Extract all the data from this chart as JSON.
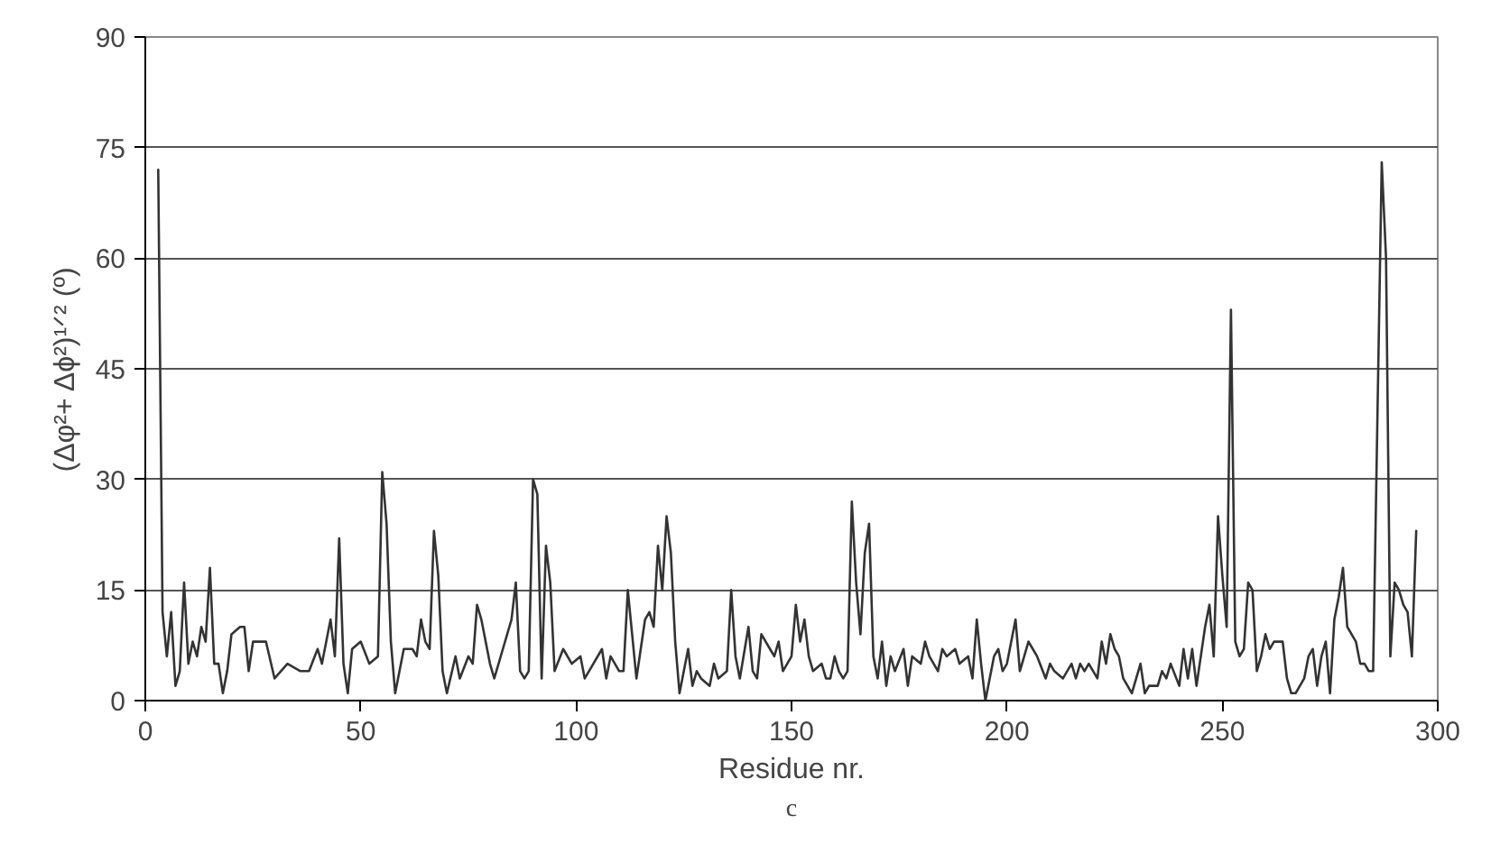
{
  "chart_data": {
    "type": "line",
    "xlabel": "Residue nr.",
    "ylabel": "(Δφ²+ Δϕ²)¹ᐟ² (º)",
    "annotations": [
      "c"
    ],
    "xlim": [
      0,
      300
    ],
    "xticks": [
      0,
      50,
      100,
      150,
      200,
      250,
      300
    ],
    "ylim": [
      0,
      90
    ],
    "yticks": [
      0,
      15,
      30,
      45,
      60,
      75,
      90
    ],
    "grid": "y",
    "series": [
      {
        "color": "#333333",
        "x": [
          3,
          4,
          5,
          6,
          7,
          8,
          9,
          10,
          11,
          12,
          13,
          14,
          15,
          16,
          17,
          18,
          19,
          20,
          22,
          23,
          24,
          25,
          27,
          28,
          30,
          33,
          36,
          38,
          40,
          41,
          43,
          44,
          45,
          46,
          47,
          48,
          50,
          52,
          54,
          55,
          56,
          57,
          58,
          60,
          62,
          63,
          64,
          65,
          66,
          67,
          68,
          69,
          70,
          72,
          73,
          75,
          76,
          77,
          78,
          80,
          81,
          83,
          85,
          86,
          87,
          88,
          89,
          90,
          91,
          92,
          93,
          94,
          95,
          97,
          99,
          101,
          102,
          104,
          106,
          107,
          108,
          110,
          111,
          112,
          113,
          114,
          116,
          117,
          118,
          119,
          120,
          121,
          122,
          123,
          124,
          125,
          126,
          127,
          128,
          129,
          131,
          132,
          133,
          135,
          136,
          137,
          138,
          140,
          141,
          142,
          143,
          145,
          146,
          147,
          148,
          150,
          151,
          152,
          153,
          154,
          155,
          157,
          158,
          159,
          160,
          161,
          162,
          163,
          164,
          165,
          166,
          167,
          168,
          169,
          170,
          171,
          172,
          173,
          174,
          176,
          177,
          178,
          180,
          181,
          182,
          184,
          185,
          186,
          188,
          189,
          191,
          192,
          193,
          194,
          195,
          197,
          198,
          199,
          200,
          202,
          203,
          205,
          206,
          207,
          209,
          210,
          211,
          213,
          215,
          216,
          217,
          218,
          219,
          221,
          222,
          223,
          224,
          225,
          226,
          227,
          229,
          231,
          232,
          233,
          235,
          236,
          237,
          238,
          240,
          241,
          242,
          243,
          244,
          246,
          247,
          248,
          249,
          250,
          251,
          252,
          253,
          254,
          255,
          256,
          257,
          258,
          259,
          260,
          261,
          262,
          264,
          265,
          266,
          267,
          269,
          270,
          271,
          272,
          273,
          274,
          275,
          276,
          277,
          278,
          279,
          280,
          281,
          282,
          283,
          284,
          285,
          287,
          288,
          289,
          290,
          291,
          292,
          293,
          294,
          295
        ],
        "values": [
          72,
          12,
          6,
          12,
          2,
          4,
          16,
          5,
          8,
          6,
          10,
          8,
          18,
          5,
          5,
          1,
          4,
          9,
          10,
          10,
          4,
          8,
          8,
          8,
          3,
          5,
          4,
          4,
          7,
          5,
          11,
          6,
          22,
          5,
          1,
          7,
          8,
          5,
          6,
          31,
          24,
          8,
          1,
          7,
          7,
          6,
          11,
          8,
          7,
          23,
          17,
          4,
          1,
          6,
          3,
          6,
          5,
          13,
          11,
          5,
          3,
          7,
          11,
          16,
          4,
          3,
          4,
          30,
          28,
          3,
          21,
          16,
          4,
          7,
          5,
          6,
          3,
          5,
          7,
          3,
          6,
          4,
          4,
          15,
          9,
          3,
          11,
          12,
          10,
          21,
          15,
          25,
          20,
          8,
          1,
          4,
          7,
          2,
          4,
          3,
          2,
          5,
          3,
          4,
          15,
          6,
          3,
          10,
          4,
          3,
          9,
          7,
          6,
          8,
          4,
          6,
          13,
          8,
          11,
          6,
          4,
          5,
          3,
          3,
          6,
          4,
          3,
          4,
          27,
          16,
          9,
          20,
          24,
          6,
          3,
          8,
          2,
          6,
          4,
          7,
          2,
          6,
          5,
          8,
          6,
          4,
          7,
          6,
          7,
          5,
          6,
          3,
          11,
          5,
          0,
          6,
          7,
          4,
          5,
          11,
          4,
          8,
          7,
          6,
          3,
          5,
          4,
          3,
          5,
          3,
          5,
          4,
          5,
          3,
          8,
          5,
          9,
          7,
          6,
          3,
          1,
          5,
          1,
          2,
          2,
          4,
          3,
          5,
          2,
          7,
          3,
          7,
          2,
          10,
          13,
          6,
          25,
          17,
          10,
          53,
          8,
          6,
          7,
          16,
          15,
          4,
          6,
          9,
          7,
          8,
          8,
          3,
          1,
          1,
          3,
          6,
          7,
          2,
          6,
          8,
          1,
          11,
          14,
          18,
          10,
          9,
          8,
          5,
          5,
          4,
          4,
          73,
          60,
          6,
          16,
          15,
          13,
          12,
          6,
          23
        ]
      }
    ]
  }
}
